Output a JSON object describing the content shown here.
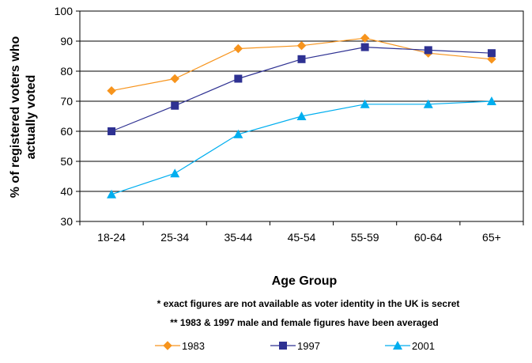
{
  "chart_data": {
    "type": "line",
    "categories": [
      "18-24",
      "25-34",
      "35-44",
      "45-54",
      "55-59",
      "60-64",
      "65+"
    ],
    "series": [
      {
        "name": "1983",
        "color": "#F7941D",
        "marker": "diamond",
        "values": [
          73.5,
          77.5,
          87.5,
          88.5,
          91,
          86,
          84
        ]
      },
      {
        "name": "1997",
        "color": "#2E3192",
        "marker": "square",
        "values": [
          60,
          68.5,
          77.5,
          84,
          88,
          87,
          86
        ]
      },
      {
        "name": "2001",
        "color": "#00AEEF",
        "marker": "triangle",
        "values": [
          39,
          46,
          59,
          65,
          69,
          69,
          70
        ]
      }
    ],
    "xlabel": "Age Group",
    "ylabel": "% of registered voters who actually voted",
    "ylabel_lines": [
      "% of registered voters who",
      "actually voted"
    ],
    "ylim": [
      30,
      100
    ],
    "yticks": [
      30,
      40,
      50,
      60,
      70,
      80,
      90,
      100
    ],
    "grid": true,
    "legend_position": "bottom",
    "notes": [
      "* exact figures are not available as voter identity in the UK is secret",
      "** 1983 & 1997 male and female figures have been averaged"
    ]
  }
}
